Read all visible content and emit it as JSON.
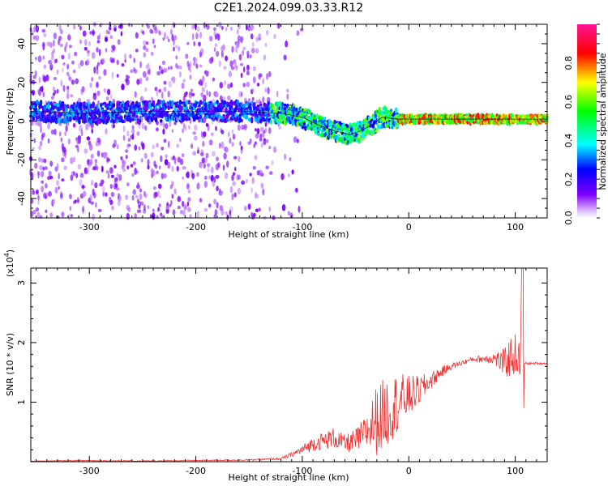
{
  "figure_title": "C2E1.2024.099.03.33.R12",
  "colors": {
    "snr_line": "#ee3333",
    "ridge_line": "#000000"
  },
  "chart_data": [
    {
      "type": "heatmap",
      "xlabel": "Height of straight line (km)",
      "ylabel": "Frequency (Hz)",
      "xlim": [
        -355,
        130
      ],
      "ylim": [
        -50,
        50
      ],
      "x_ticks": [
        {
          "value": -300,
          "label": "-300"
        },
        {
          "value": -200,
          "label": "-200"
        },
        {
          "value": -100,
          "label": "-100"
        },
        {
          "value": 0,
          "label": "0"
        },
        {
          "value": 100,
          "label": "100"
        }
      ],
      "y_ticks": [
        {
          "value": -40,
          "label": "-40"
        },
        {
          "value": -20,
          "label": "-20"
        },
        {
          "value": 0,
          "label": "0"
        },
        {
          "value": 20,
          "label": "20"
        },
        {
          "value": 40,
          "label": "40"
        }
      ],
      "colorbar": {
        "label": "Normalized spectral amplitude",
        "range": [
          0,
          1
        ],
        "ticks": [
          {
            "value": 0.0,
            "label": "0.0"
          },
          {
            "value": 0.2,
            "label": "0.2"
          },
          {
            "value": 0.4,
            "label": "0.4"
          },
          {
            "value": 0.6,
            "label": "0.6"
          },
          {
            "value": 0.8,
            "label": "0.8"
          }
        ],
        "colormap": "rainbow (white-purple-blue-cyan-green-yellow-red-pink)"
      },
      "ridge": {
        "x": [
          -350,
          -300,
          -250,
          -200,
          -150,
          -120,
          -100,
          -85,
          -70,
          -55,
          -45,
          -35,
          -25,
          -10,
          0,
          20,
          50,
          80,
          100,
          130
        ],
        "y": [
          5,
          4,
          5,
          5,
          5,
          4,
          2,
          -2,
          -5,
          -7,
          -5,
          -2,
          2,
          1,
          1,
          1,
          1,
          1,
          1,
          1
        ]
      }
    },
    {
      "type": "line",
      "xlabel": "Height of straight line (km)",
      "ylabel": "SNR (10 * v/v)",
      "y_multiplier_label": "(x10",
      "y_multiplier_exp": "4",
      "xlim": [
        -355,
        130
      ],
      "ylim": [
        0,
        3.25
      ],
      "x_ticks": [
        {
          "value": -300,
          "label": "-300"
        },
        {
          "value": -200,
          "label": "-200"
        },
        {
          "value": -100,
          "label": "-100"
        },
        {
          "value": 0,
          "label": "0"
        },
        {
          "value": 100,
          "label": "100"
        }
      ],
      "y_ticks": [
        {
          "value": 1,
          "label": "1"
        },
        {
          "value": 2,
          "label": "2"
        },
        {
          "value": 3,
          "label": "3"
        }
      ],
      "series": [
        {
          "x": [
            -355,
            -300,
            -250,
            -200,
            -150,
            -120,
            -110,
            -100,
            -90,
            -80,
            -70,
            -60,
            -50,
            -40,
            -30,
            -20,
            -10,
            0,
            10,
            20,
            30,
            40,
            60,
            80,
            90,
            95,
            100,
            105,
            106,
            107,
            108,
            110,
            120,
            130
          ],
          "y": [
            0.01,
            0.02,
            0.01,
            0.02,
            0.03,
            0.05,
            0.12,
            0.2,
            0.3,
            0.35,
            0.4,
            0.3,
            0.35,
            0.5,
            0.7,
            0.85,
            1.0,
            1.1,
            1.2,
            1.35,
            1.5,
            1.6,
            1.72,
            1.74,
            1.65,
            1.75,
            1.8,
            1.7,
            3.2,
            1.1,
            1.66,
            1.65,
            1.65,
            1.65
          ],
          "noise": [
            0.005,
            0.01,
            0.01,
            0.01,
            0.01,
            0.02,
            0.04,
            0.08,
            0.12,
            0.15,
            0.18,
            0.15,
            0.2,
            0.3,
            0.6,
            0.6,
            0.5,
            0.35,
            0.25,
            0.15,
            0.1,
            0.05,
            0.04,
            0.1,
            0.25,
            0.35,
            0.35,
            0.3,
            0,
            0,
            0.02,
            0.02,
            0.02,
            0.02
          ]
        }
      ]
    }
  ]
}
